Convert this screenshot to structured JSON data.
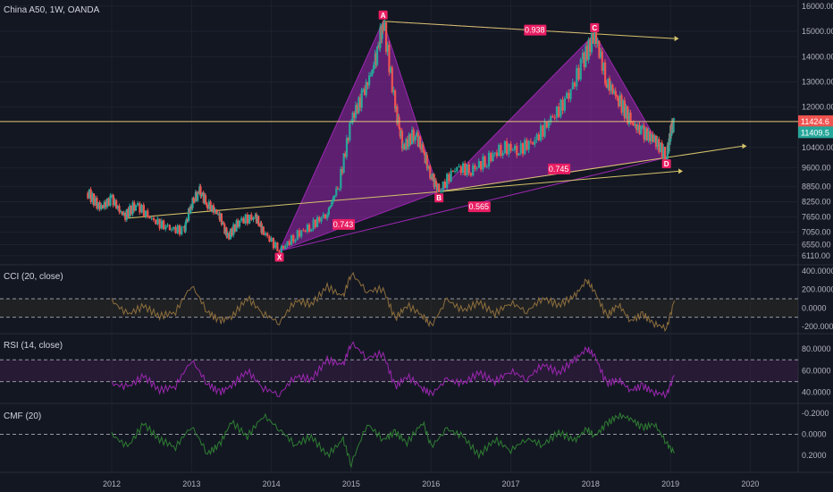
{
  "colors": {
    "bg": "#131722",
    "grid": "#1e222d",
    "axis": "#d1d4dc",
    "up": "#26a69a",
    "down": "#ef5350",
    "pattern": "#9c27b0",
    "label": "#e91e63",
    "trend": "#d4c36a",
    "cci": "#8d6e3c",
    "rsi": "#9c27b0",
    "cmf": "#2e7d32",
    "price_line": "#e6c77a"
  },
  "chart_data": [
    {
      "type": "candlestick",
      "title": "China A50, 1W, OANDA",
      "x_ticks": [
        "2012",
        "2013",
        "2014",
        "2015",
        "2016",
        "2017",
        "2018",
        "2019",
        "2020"
      ],
      "y_ticks": [
        16000,
        15000,
        14000,
        13000,
        12000,
        10400,
        9600,
        8850,
        8250,
        7650,
        7050,
        6550,
        6110
      ],
      "ylim": [
        6000,
        16100
      ],
      "last_price": "11424.6",
      "prev_price": "11409.5",
      "pattern": {
        "points": [
          {
            "label": "X",
            "t": 2014.1,
            "v": 6300
          },
          {
            "label": "A",
            "t": 2015.4,
            "v": 15400
          },
          {
            "label": "B",
            "t": 2016.1,
            "v": 8650
          },
          {
            "label": "C",
            "t": 2018.05,
            "v": 14900
          },
          {
            "label": "D",
            "t": 2018.95,
            "v": 10000
          }
        ],
        "ratios": [
          {
            "text": "0.938",
            "t": 2017.3,
            "v": 15050
          },
          {
            "text": "0.745",
            "t": 2017.6,
            "v": 9550
          },
          {
            "text": "0.565",
            "t": 2016.6,
            "v": 8050
          },
          {
            "text": "0.743",
            "t": 2014.9,
            "v": 7350
          }
        ]
      },
      "series": [
        {
          "t": 2011.7,
          "v": 8600
        },
        {
          "t": 2011.85,
          "v": 8000
        },
        {
          "t": 2012.0,
          "v": 8350
        },
        {
          "t": 2012.15,
          "v": 7650
        },
        {
          "t": 2012.3,
          "v": 8150
        },
        {
          "t": 2012.5,
          "v": 7550
        },
        {
          "t": 2012.7,
          "v": 7200
        },
        {
          "t": 2012.9,
          "v": 7100
        },
        {
          "t": 2013.0,
          "v": 8200
        },
        {
          "t": 2013.1,
          "v": 8650
        },
        {
          "t": 2013.2,
          "v": 8150
        },
        {
          "t": 2013.35,
          "v": 7700
        },
        {
          "t": 2013.45,
          "v": 6850
        },
        {
          "t": 2013.6,
          "v": 7500
        },
        {
          "t": 2013.8,
          "v": 7650
        },
        {
          "t": 2013.9,
          "v": 7050
        },
        {
          "t": 2014.1,
          "v": 6300
        },
        {
          "t": 2014.3,
          "v": 6900
        },
        {
          "t": 2014.5,
          "v": 7300
        },
        {
          "t": 2014.7,
          "v": 7800
        },
        {
          "t": 2014.85,
          "v": 9000
        },
        {
          "t": 2015.0,
          "v": 11500
        },
        {
          "t": 2015.15,
          "v": 12500
        },
        {
          "t": 2015.3,
          "v": 13800
        },
        {
          "t": 2015.4,
          "v": 15400
        },
        {
          "t": 2015.55,
          "v": 12000
        },
        {
          "t": 2015.65,
          "v": 10400
        },
        {
          "t": 2015.8,
          "v": 11000
        },
        {
          "t": 2015.9,
          "v": 10200
        },
        {
          "t": 2016.0,
          "v": 9300
        },
        {
          "t": 2016.1,
          "v": 8650
        },
        {
          "t": 2016.3,
          "v": 9600
        },
        {
          "t": 2016.5,
          "v": 9500
        },
        {
          "t": 2016.7,
          "v": 9900
        },
        {
          "t": 2016.9,
          "v": 10400
        },
        {
          "t": 2017.1,
          "v": 10300
        },
        {
          "t": 2017.3,
          "v": 10700
        },
        {
          "t": 2017.5,
          "v": 11500
        },
        {
          "t": 2017.7,
          "v": 12300
        },
        {
          "t": 2017.9,
          "v": 13800
        },
        {
          "t": 2018.05,
          "v": 14900
        },
        {
          "t": 2018.2,
          "v": 13000
        },
        {
          "t": 2018.35,
          "v": 12300
        },
        {
          "t": 2018.5,
          "v": 11400
        },
        {
          "t": 2018.65,
          "v": 11000
        },
        {
          "t": 2018.8,
          "v": 10700
        },
        {
          "t": 2018.95,
          "v": 10000
        },
        {
          "t": 2019.0,
          "v": 11000
        },
        {
          "t": 2019.05,
          "v": 11424
        }
      ]
    },
    {
      "type": "line",
      "title": "CCI (20, close)",
      "y_ticks": [
        "400.0000",
        "200.0000",
        "0.0000",
        "-200.0000"
      ],
      "ylim": [
        -230,
        420
      ],
      "bands": [
        100,
        -100
      ],
      "series": [
        {
          "t": 2012.0,
          "v": 80
        },
        {
          "t": 2012.2,
          "v": -70
        },
        {
          "t": 2012.4,
          "v": 20
        },
        {
          "t": 2012.6,
          "v": -90
        },
        {
          "t": 2012.8,
          "v": -40
        },
        {
          "t": 2013.0,
          "v": 250
        },
        {
          "t": 2013.2,
          "v": -40
        },
        {
          "t": 2013.35,
          "v": -140
        },
        {
          "t": 2013.5,
          "v": -100
        },
        {
          "t": 2013.7,
          "v": 110
        },
        {
          "t": 2013.9,
          "v": -60
        },
        {
          "t": 2014.1,
          "v": -160
        },
        {
          "t": 2014.3,
          "v": 80
        },
        {
          "t": 2014.5,
          "v": 40
        },
        {
          "t": 2014.7,
          "v": 230
        },
        {
          "t": 2014.9,
          "v": 120
        },
        {
          "t": 2015.0,
          "v": 380
        },
        {
          "t": 2015.2,
          "v": 180
        },
        {
          "t": 2015.4,
          "v": 210
        },
        {
          "t": 2015.55,
          "v": -120
        },
        {
          "t": 2015.7,
          "v": 30
        },
        {
          "t": 2015.9,
          "v": -80
        },
        {
          "t": 2016.0,
          "v": -200
        },
        {
          "t": 2016.2,
          "v": 90
        },
        {
          "t": 2016.4,
          "v": -30
        },
        {
          "t": 2016.6,
          "v": 60
        },
        {
          "t": 2016.8,
          "v": -60
        },
        {
          "t": 2017.0,
          "v": 60
        },
        {
          "t": 2017.2,
          "v": -40
        },
        {
          "t": 2017.4,
          "v": 110
        },
        {
          "t": 2017.6,
          "v": 30
        },
        {
          "t": 2017.8,
          "v": 130
        },
        {
          "t": 2017.95,
          "v": 300
        },
        {
          "t": 2018.05,
          "v": 180
        },
        {
          "t": 2018.2,
          "v": -90
        },
        {
          "t": 2018.35,
          "v": 40
        },
        {
          "t": 2018.5,
          "v": -140
        },
        {
          "t": 2018.65,
          "v": -70
        },
        {
          "t": 2018.8,
          "v": -170
        },
        {
          "t": 2018.95,
          "v": -220
        },
        {
          "t": 2019.05,
          "v": 80
        }
      ]
    },
    {
      "type": "line",
      "title": "RSI (14, close)",
      "y_ticks": [
        "80.0000",
        "60.0000",
        "40.0000"
      ],
      "ylim": [
        34,
        90
      ],
      "bands": [
        70,
        50
      ],
      "series": [
        {
          "t": 2012.0,
          "v": 48
        },
        {
          "t": 2012.2,
          "v": 45
        },
        {
          "t": 2012.4,
          "v": 55
        },
        {
          "t": 2012.6,
          "v": 42
        },
        {
          "t": 2012.8,
          "v": 46
        },
        {
          "t": 2013.0,
          "v": 70
        },
        {
          "t": 2013.2,
          "v": 48
        },
        {
          "t": 2013.35,
          "v": 40
        },
        {
          "t": 2013.5,
          "v": 46
        },
        {
          "t": 2013.7,
          "v": 60
        },
        {
          "t": 2013.9,
          "v": 44
        },
        {
          "t": 2014.1,
          "v": 38
        },
        {
          "t": 2014.3,
          "v": 55
        },
        {
          "t": 2014.5,
          "v": 52
        },
        {
          "t": 2014.7,
          "v": 70
        },
        {
          "t": 2014.9,
          "v": 65
        },
        {
          "t": 2015.0,
          "v": 86
        },
        {
          "t": 2015.2,
          "v": 72
        },
        {
          "t": 2015.4,
          "v": 76
        },
        {
          "t": 2015.55,
          "v": 45
        },
        {
          "t": 2015.7,
          "v": 55
        },
        {
          "t": 2015.9,
          "v": 44
        },
        {
          "t": 2016.0,
          "v": 38
        },
        {
          "t": 2016.2,
          "v": 52
        },
        {
          "t": 2016.4,
          "v": 48
        },
        {
          "t": 2016.6,
          "v": 58
        },
        {
          "t": 2016.8,
          "v": 50
        },
        {
          "t": 2017.0,
          "v": 60
        },
        {
          "t": 2017.2,
          "v": 52
        },
        {
          "t": 2017.4,
          "v": 66
        },
        {
          "t": 2017.6,
          "v": 58
        },
        {
          "t": 2017.8,
          "v": 70
        },
        {
          "t": 2017.95,
          "v": 80
        },
        {
          "t": 2018.05,
          "v": 74
        },
        {
          "t": 2018.2,
          "v": 48
        },
        {
          "t": 2018.35,
          "v": 52
        },
        {
          "t": 2018.5,
          "v": 42
        },
        {
          "t": 2018.65,
          "v": 46
        },
        {
          "t": 2018.8,
          "v": 40
        },
        {
          "t": 2018.95,
          "v": 38
        },
        {
          "t": 2019.05,
          "v": 56
        }
      ]
    },
    {
      "type": "line",
      "title": "CMF (20)",
      "y_ticks": [
        "-0.2000",
        "0.0000",
        "0.2000"
      ],
      "ylim": [
        0.3,
        -0.25
      ],
      "zero": 0,
      "series": [
        {
          "t": 2012.0,
          "v": 0.0
        },
        {
          "t": 2012.2,
          "v": 0.12
        },
        {
          "t": 2012.4,
          "v": -0.1
        },
        {
          "t": 2012.6,
          "v": 0.05
        },
        {
          "t": 2012.8,
          "v": 0.12
        },
        {
          "t": 2013.0,
          "v": -0.08
        },
        {
          "t": 2013.2,
          "v": 0.18
        },
        {
          "t": 2013.35,
          "v": 0.1
        },
        {
          "t": 2013.5,
          "v": -0.12
        },
        {
          "t": 2013.7,
          "v": 0.02
        },
        {
          "t": 2013.9,
          "v": -0.18
        },
        {
          "t": 2014.1,
          "v": -0.05
        },
        {
          "t": 2014.3,
          "v": 0.1
        },
        {
          "t": 2014.5,
          "v": 0.02
        },
        {
          "t": 2014.7,
          "v": 0.2
        },
        {
          "t": 2014.9,
          "v": 0.05
        },
        {
          "t": 2015.0,
          "v": 0.28
        },
        {
          "t": 2015.2,
          "v": -0.1
        },
        {
          "t": 2015.4,
          "v": 0.05
        },
        {
          "t": 2015.55,
          "v": -0.02
        },
        {
          "t": 2015.7,
          "v": 0.08
        },
        {
          "t": 2015.9,
          "v": -0.12
        },
        {
          "t": 2016.0,
          "v": 0.12
        },
        {
          "t": 2016.2,
          "v": -0.05
        },
        {
          "t": 2016.4,
          "v": 0.02
        },
        {
          "t": 2016.6,
          "v": 0.2
        },
        {
          "t": 2016.8,
          "v": 0.05
        },
        {
          "t": 2017.0,
          "v": 0.15
        },
        {
          "t": 2017.2,
          "v": 0.04
        },
        {
          "t": 2017.4,
          "v": 0.1
        },
        {
          "t": 2017.6,
          "v": -0.02
        },
        {
          "t": 2017.8,
          "v": 0.06
        },
        {
          "t": 2017.95,
          "v": -0.05
        },
        {
          "t": 2018.05,
          "v": 0.02
        },
        {
          "t": 2018.2,
          "v": -0.1
        },
        {
          "t": 2018.35,
          "v": -0.18
        },
        {
          "t": 2018.5,
          "v": -0.15
        },
        {
          "t": 2018.65,
          "v": -0.06
        },
        {
          "t": 2018.8,
          "v": -0.1
        },
        {
          "t": 2018.95,
          "v": 0.08
        },
        {
          "t": 2019.05,
          "v": 0.18
        }
      ]
    }
  ]
}
